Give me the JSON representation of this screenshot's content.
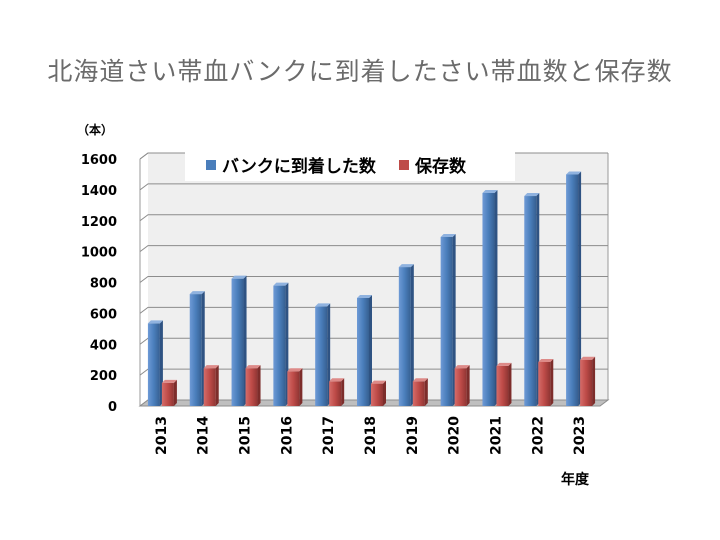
{
  "page": {
    "title": "北海道さい帯血バンクに到着したさい帯血数と保存数"
  },
  "chart_data": {
    "type": "bar",
    "title": "北海道さい帯血バンクに到着したさい帯血数と保存数",
    "ylabel": "（本）",
    "xlabel": "年度",
    "categories": [
      "2013",
      "2014",
      "2015",
      "2016",
      "2017",
      "2018",
      "2019",
      "2020",
      "2021",
      "2022",
      "2023"
    ],
    "series": [
      {
        "name": "バンクに到着した数",
        "color": "#4a7ebb",
        "values": [
          535,
          725,
          825,
          780,
          645,
          700,
          900,
          1095,
          1380,
          1360,
          1500
        ]
      },
      {
        "name": "保存数",
        "color": "#be4b48",
        "values": [
          150,
          245,
          245,
          225,
          160,
          145,
          160,
          245,
          260,
          285,
          300
        ]
      }
    ],
    "ylim": [
      0,
      1600
    ],
    "yticks": [
      "0",
      "200",
      "400",
      "600",
      "800",
      "1000",
      "1200",
      "1400",
      "1600"
    ],
    "grid": true,
    "legend_position": "top",
    "style": "3d-bar"
  }
}
